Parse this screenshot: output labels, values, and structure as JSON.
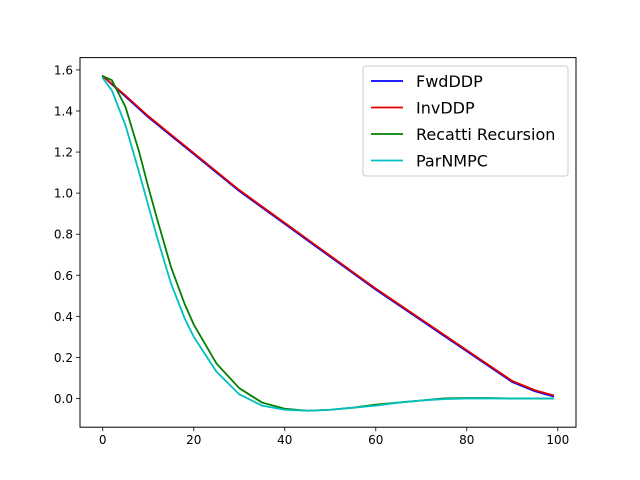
{
  "chart_data": {
    "type": "line",
    "title": "",
    "xlabel": "",
    "ylabel": "",
    "xlim": [
      -5,
      104
    ],
    "ylim": [
      -0.14,
      1.66
    ],
    "xticks": [
      0,
      20,
      40,
      60,
      80,
      100
    ],
    "yticks": [
      0.0,
      0.2,
      0.4,
      0.6,
      0.8,
      1.0,
      1.2,
      1.4,
      1.6
    ],
    "xtick_labels": [
      "0",
      "20",
      "40",
      "60",
      "80",
      "100"
    ],
    "ytick_labels": [
      "0.0",
      "0.2",
      "0.4",
      "0.6",
      "0.8",
      "1.0",
      "1.2",
      "1.4",
      "1.6"
    ],
    "grid": false,
    "legend_position": "top-right",
    "series": [
      {
        "name": "FwdDDP",
        "color": "#0000ff",
        "x": [
          0,
          5,
          10,
          15,
          20,
          25,
          30,
          35,
          40,
          45,
          50,
          55,
          60,
          65,
          70,
          75,
          80,
          85,
          90,
          95,
          99
        ],
        "y": [
          1.57,
          1.47,
          1.37,
          1.28,
          1.19,
          1.1,
          1.01,
          0.93,
          0.85,
          0.77,
          0.69,
          0.61,
          0.53,
          0.455,
          0.38,
          0.305,
          0.23,
          0.155,
          0.08,
          0.035,
          0.01
        ]
      },
      {
        "name": "InvDDP",
        "color": "#e00000",
        "x": [
          0,
          5,
          10,
          15,
          20,
          25,
          30,
          35,
          40,
          45,
          50,
          55,
          60,
          65,
          70,
          75,
          80,
          85,
          90,
          95,
          99
        ],
        "y": [
          1.57,
          1.475,
          1.375,
          1.285,
          1.195,
          1.105,
          1.015,
          0.935,
          0.855,
          0.775,
          0.695,
          0.615,
          0.535,
          0.46,
          0.385,
          0.31,
          0.235,
          0.16,
          0.085,
          0.04,
          0.015
        ]
      },
      {
        "name": "Recatti Recursion",
        "color": "#008000",
        "x": [
          0,
          2,
          5,
          8,
          10,
          12,
          15,
          18,
          20,
          25,
          30,
          35,
          40,
          45,
          50,
          55,
          60,
          65,
          70,
          75,
          80,
          85,
          90,
          95,
          99
        ],
        "y": [
          1.57,
          1.55,
          1.42,
          1.2,
          1.03,
          0.87,
          0.64,
          0.46,
          0.36,
          0.17,
          0.05,
          -0.02,
          -0.05,
          -0.06,
          -0.055,
          -0.045,
          -0.03,
          -0.02,
          -0.01,
          0.0,
          0.002,
          0.002,
          0.0,
          0.0,
          0.0
        ]
      },
      {
        "name": "ParNMPC",
        "color": "#00bfbf",
        "x": [
          0,
          2,
          5,
          8,
          10,
          12,
          15,
          18,
          20,
          25,
          30,
          35,
          40,
          45,
          50,
          55,
          60,
          65,
          70,
          75,
          80,
          85,
          90,
          95,
          99
        ],
        "y": [
          1.56,
          1.5,
          1.33,
          1.1,
          0.94,
          0.78,
          0.56,
          0.39,
          0.3,
          0.13,
          0.02,
          -0.035,
          -0.055,
          -0.06,
          -0.055,
          -0.045,
          -0.035,
          -0.02,
          -0.01,
          -0.003,
          0.0,
          0.0,
          0.0,
          0.0,
          0.0
        ]
      }
    ]
  }
}
